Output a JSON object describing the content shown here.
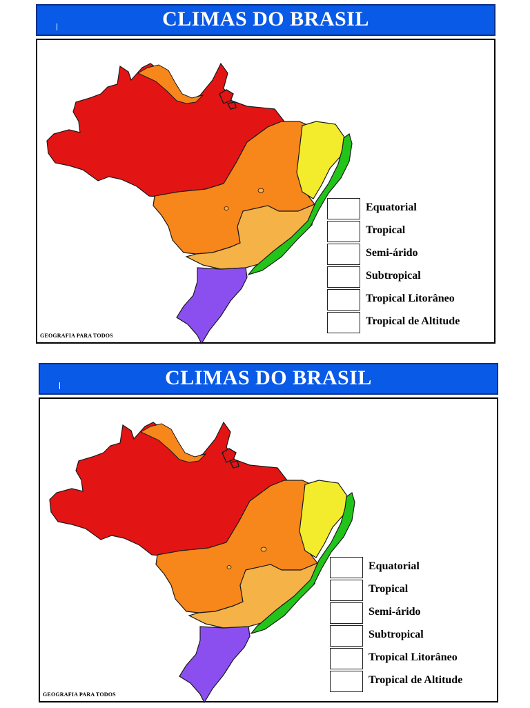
{
  "title": "CLIMAS DO BRASIL",
  "credit": "GEOGRAFIA PARA TODOS",
  "legend": [
    "Equatorial",
    "Tropical",
    "Semi-árido",
    "Subtropical",
    "Tropical Litorâneo",
    "Tropical de Altitude"
  ],
  "region_colors": {
    "equatorial": "#e31414",
    "tropical": "#f7861b",
    "semi_arido": "#f2ec2c",
    "subtropical": "#8b4ff0",
    "tropical_litoraneo": "#22c41a",
    "tropical_de_altitude": "#f5b247"
  },
  "title_bar_color": "#0a5ae8"
}
